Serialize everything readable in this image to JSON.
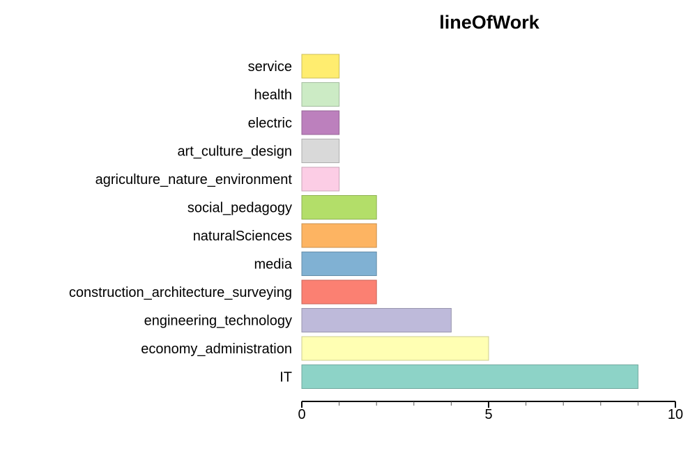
{
  "chart_data": {
    "type": "bar",
    "orientation": "horizontal",
    "title": "lineOfWork",
    "xlabel": "",
    "ylabel": "",
    "xlim": [
      0,
      10
    ],
    "x_ticks": [
      0,
      5,
      10
    ],
    "grid": false,
    "categories": [
      "IT",
      "economy_administration",
      "engineering_technology",
      "construction_architecture_surveying",
      "media",
      "naturalSciences",
      "social_pedagogy",
      "agriculture_nature_environment",
      "art_culture_design",
      "electric",
      "health",
      "service"
    ],
    "values": [
      9,
      5,
      4,
      2,
      2,
      2,
      2,
      1,
      1,
      1,
      1,
      1
    ],
    "colors": [
      "#8DD3C7",
      "#FFFFB3",
      "#BEBADA",
      "#FB8072",
      "#80B1D3",
      "#FDB462",
      "#B3DE69",
      "#FCCDE5",
      "#D9D9D9",
      "#BC80BD",
      "#CCEBC5",
      "#FFED6F"
    ]
  }
}
